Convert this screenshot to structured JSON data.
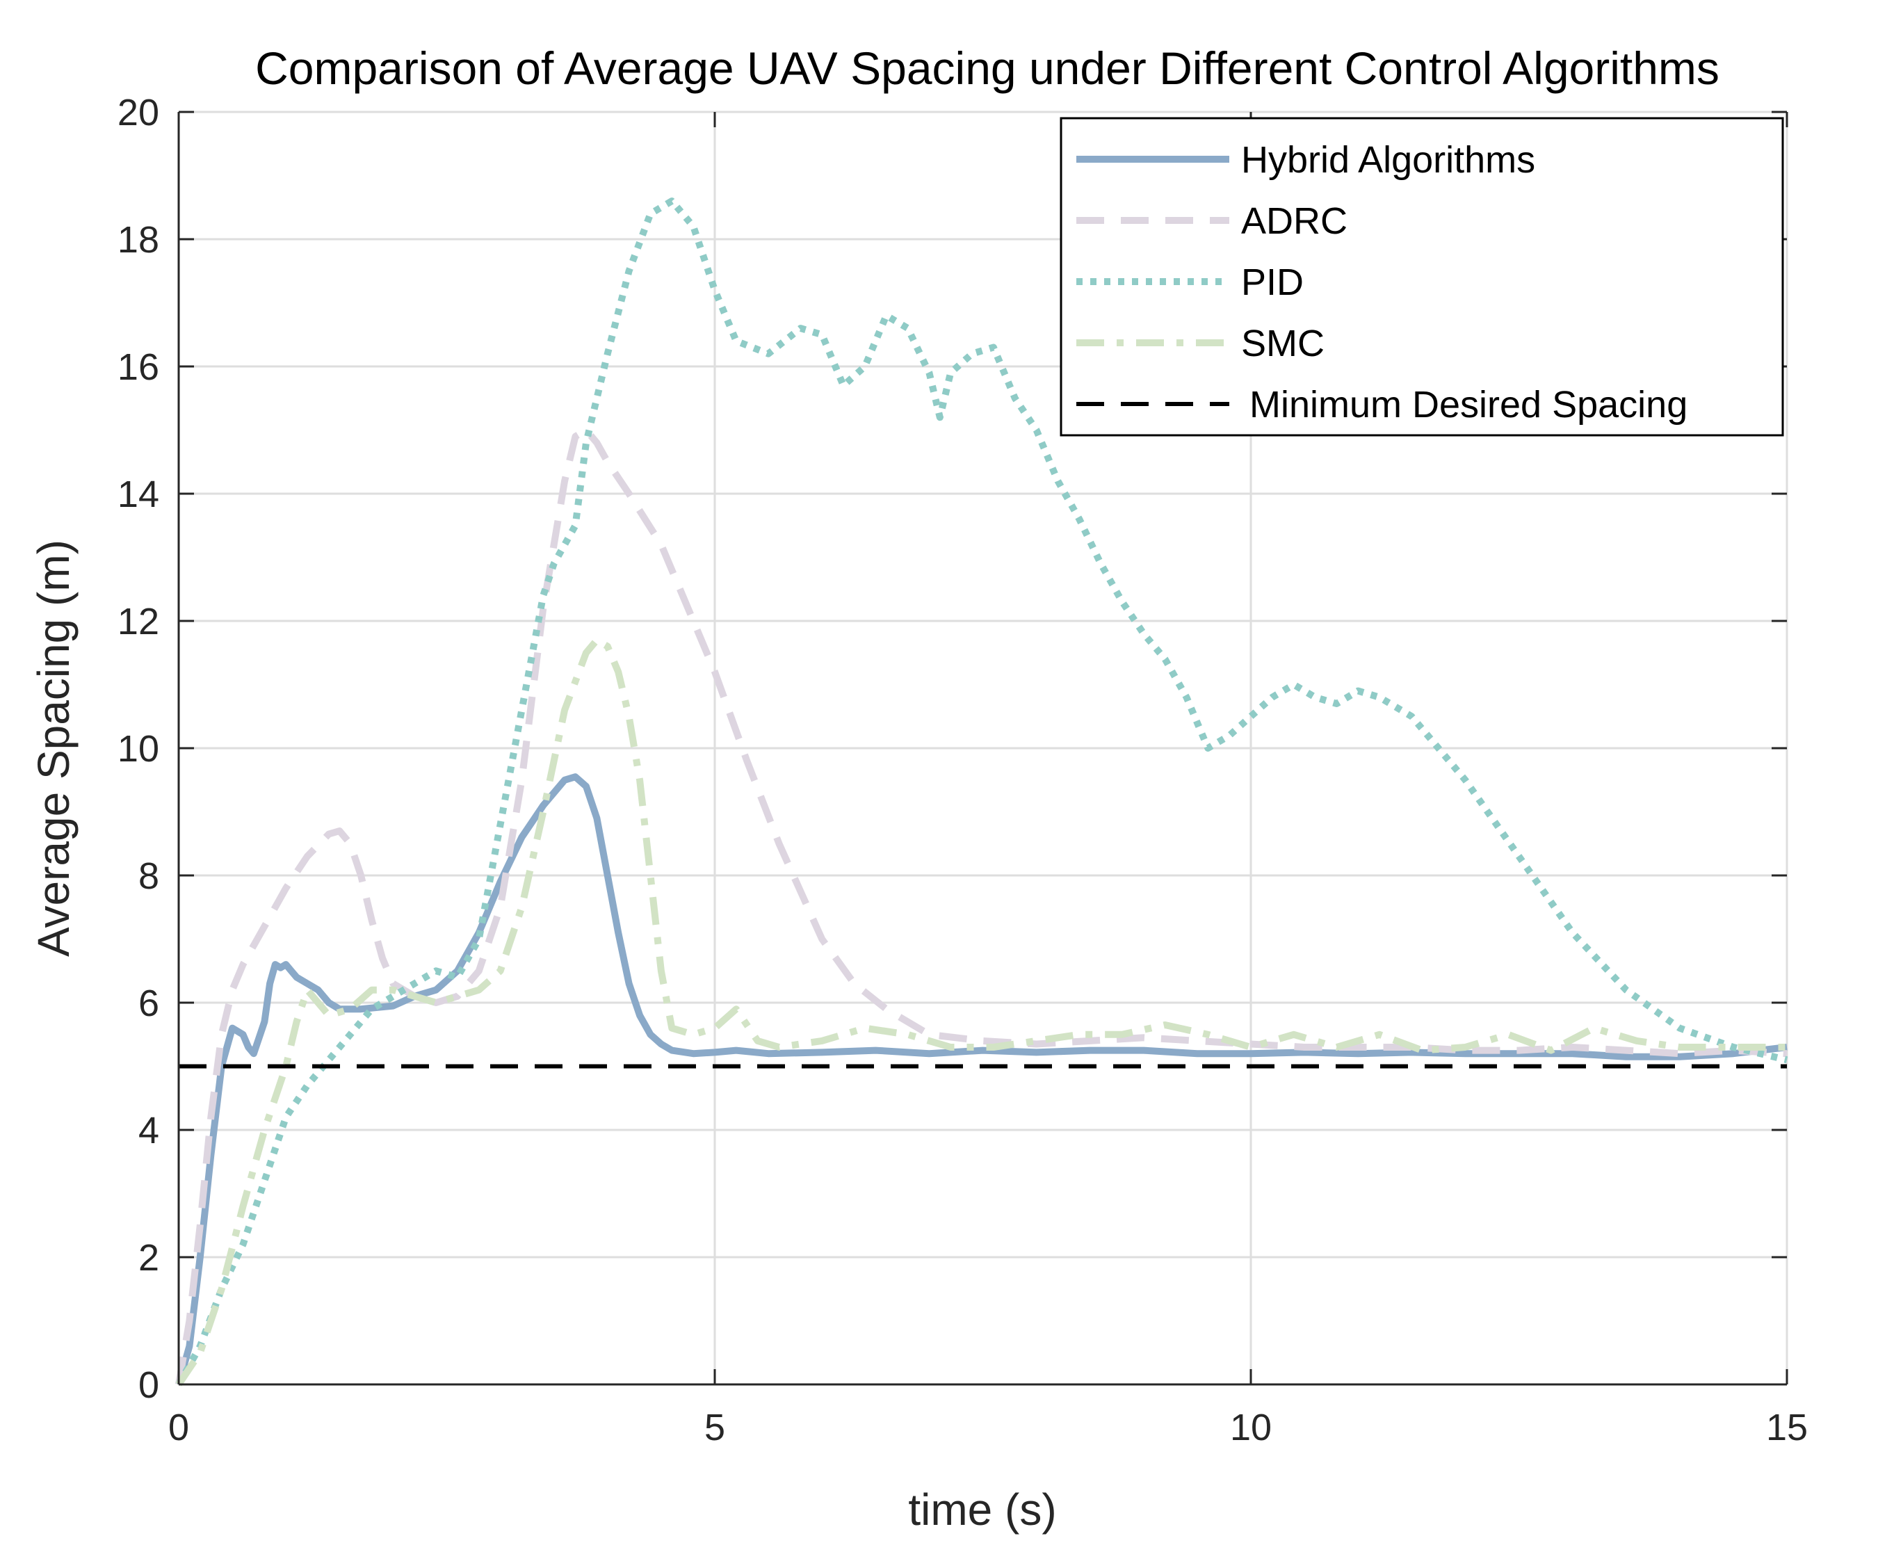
{
  "chart_data": {
    "type": "line",
    "title": "Comparison of Average UAV Spacing under Different Control Algorithms",
    "xlabel": "time (s)",
    "ylabel": "Average Spacing (m)",
    "xlim": [
      0,
      15
    ],
    "ylim": [
      0,
      20
    ],
    "xticks": [
      0,
      5,
      10,
      15
    ],
    "xtick_labels": [
      "0",
      "5",
      "10",
      "15"
    ],
    "yticks": [
      0,
      2,
      4,
      6,
      8,
      10,
      12,
      14,
      16,
      18,
      20
    ],
    "ytick_labels": [
      "0",
      "2",
      "4",
      "6",
      "8",
      "10",
      "12",
      "14",
      "16",
      "18",
      "20"
    ],
    "grid": true,
    "legend_position": "top-right",
    "series": [
      {
        "name": "Hybrid Algorithms",
        "color": "#8aa9c8",
        "style": "solid",
        "x": [
          0,
          0.1,
          0.2,
          0.3,
          0.4,
          0.5,
          0.6,
          0.65,
          0.7,
          0.8,
          0.85,
          0.9,
          0.95,
          1.0,
          1.05,
          1.1,
          1.2,
          1.3,
          1.4,
          1.5,
          1.7,
          2.0,
          2.2,
          2.4,
          2.6,
          2.8,
          3.0,
          3.2,
          3.4,
          3.6,
          3.7,
          3.8,
          3.9,
          4.0,
          4.1,
          4.2,
          4.3,
          4.4,
          4.5,
          4.6,
          4.8,
          5.0,
          5.2,
          5.5,
          6.0,
          6.5,
          7.0,
          7.5,
          8.0,
          8.5,
          9.0,
          9.5,
          10.0,
          10.5,
          11.0,
          11.5,
          12.0,
          12.5,
          13.0,
          13.5,
          14.0,
          14.5,
          15.0
        ],
        "y": [
          0,
          0.6,
          2.0,
          3.6,
          5.0,
          5.6,
          5.5,
          5.3,
          5.2,
          5.7,
          6.3,
          6.6,
          6.55,
          6.6,
          6.5,
          6.4,
          6.3,
          6.2,
          6.0,
          5.9,
          5.9,
          5.95,
          6.1,
          6.2,
          6.5,
          7.1,
          7.9,
          8.6,
          9.1,
          9.5,
          9.55,
          9.4,
          8.9,
          8.0,
          7.1,
          6.3,
          5.8,
          5.5,
          5.35,
          5.25,
          5.2,
          5.22,
          5.25,
          5.2,
          5.22,
          5.25,
          5.2,
          5.25,
          5.22,
          5.25,
          5.25,
          5.2,
          5.2,
          5.22,
          5.2,
          5.22,
          5.2,
          5.2,
          5.2,
          5.15,
          5.15,
          5.2,
          5.3
        ]
      },
      {
        "name": "ADRC",
        "color": "#ddd5e0",
        "style": "dashed",
        "x": [
          0,
          0.1,
          0.2,
          0.3,
          0.4,
          0.5,
          0.6,
          0.7,
          0.8,
          0.9,
          1.0,
          1.2,
          1.4,
          1.5,
          1.6,
          1.7,
          1.8,
          1.9,
          2.0,
          2.2,
          2.4,
          2.6,
          2.8,
          3.0,
          3.2,
          3.4,
          3.6,
          3.7,
          3.8,
          3.9,
          4.0,
          4.2,
          4.5,
          4.8,
          5.0,
          5.3,
          5.6,
          6.0,
          6.3,
          6.6,
          7.0,
          7.5,
          8.0,
          8.5,
          9.0,
          9.5,
          10.0,
          10.5,
          11.0,
          11.5,
          12.0,
          12.5,
          13.0,
          13.5,
          14.0,
          14.5,
          15.0
        ],
        "y": [
          0,
          1.0,
          2.5,
          4.2,
          5.5,
          6.2,
          6.6,
          6.9,
          7.2,
          7.5,
          7.8,
          8.3,
          8.65,
          8.7,
          8.5,
          8.0,
          7.3,
          6.7,
          6.3,
          6.1,
          6.0,
          6.1,
          6.5,
          7.5,
          9.5,
          12.2,
          14.2,
          14.9,
          15.0,
          14.8,
          14.5,
          14.0,
          13.2,
          12.0,
          11.2,
          9.8,
          8.5,
          7.0,
          6.3,
          5.9,
          5.5,
          5.4,
          5.35,
          5.4,
          5.45,
          5.4,
          5.35,
          5.3,
          5.3,
          5.3,
          5.25,
          5.25,
          5.3,
          5.25,
          5.2,
          5.25,
          5.2
        ]
      },
      {
        "name": "PID",
        "color": "#8fcbc6",
        "style": "dotted",
        "x": [
          0,
          0.2,
          0.4,
          0.6,
          0.8,
          1.0,
          1.2,
          1.4,
          1.6,
          1.8,
          2.0,
          2.2,
          2.4,
          2.6,
          2.8,
          3.0,
          3.2,
          3.4,
          3.5,
          3.6,
          3.7,
          3.8,
          4.0,
          4.2,
          4.4,
          4.6,
          4.8,
          5.0,
          5.2,
          5.5,
          5.8,
          6.0,
          6.2,
          6.4,
          6.6,
          6.8,
          7.0,
          7.1,
          7.2,
          7.4,
          7.6,
          7.8,
          8.0,
          8.2,
          8.4,
          8.6,
          8.8,
          9.0,
          9.2,
          9.4,
          9.6,
          9.8,
          10.0,
          10.2,
          10.4,
          10.6,
          10.8,
          11.0,
          11.2,
          11.5,
          12.0,
          12.5,
          13.0,
          13.5,
          14.0,
          14.5,
          15.0
        ],
        "y": [
          0,
          0.6,
          1.5,
          2.2,
          3.2,
          4.2,
          4.7,
          5.1,
          5.5,
          5.9,
          6.1,
          6.3,
          6.5,
          6.4,
          7.0,
          8.8,
          10.6,
          12.4,
          12.9,
          13.2,
          13.5,
          14.8,
          16.2,
          17.5,
          18.4,
          18.6,
          18.2,
          17.2,
          16.4,
          16.2,
          16.6,
          16.5,
          15.7,
          16.0,
          16.8,
          16.6,
          15.9,
          15.2,
          15.9,
          16.2,
          16.3,
          15.5,
          15.0,
          14.2,
          13.6,
          12.9,
          12.3,
          11.8,
          11.4,
          10.8,
          10.0,
          10.2,
          10.5,
          10.8,
          11.0,
          10.8,
          10.7,
          10.9,
          10.8,
          10.5,
          9.5,
          8.3,
          7.1,
          6.2,
          5.6,
          5.3,
          5.1
        ]
      },
      {
        "name": "SMC",
        "color": "#d2e3c5",
        "style": "dashdot",
        "x": [
          0,
          0.2,
          0.4,
          0.6,
          0.8,
          1.0,
          1.1,
          1.2,
          1.3,
          1.4,
          1.6,
          1.8,
          2.0,
          2.2,
          2.4,
          2.6,
          2.8,
          3.0,
          3.2,
          3.4,
          3.6,
          3.8,
          3.9,
          4.0,
          4.1,
          4.2,
          4.3,
          4.4,
          4.5,
          4.6,
          4.8,
          5.0,
          5.2,
          5.4,
          5.6,
          6.0,
          6.4,
          6.8,
          7.2,
          7.6,
          8.0,
          8.4,
          8.8,
          9.2,
          9.6,
          10.0,
          10.4,
          10.8,
          11.2,
          11.6,
          12.0,
          12.4,
          12.8,
          13.2,
          13.6,
          14.0,
          14.5,
          15.0
        ],
        "y": [
          0,
          0.5,
          1.5,
          2.8,
          4.0,
          5.0,
          5.7,
          6.2,
          6.0,
          5.8,
          5.9,
          6.2,
          6.2,
          6.1,
          6.0,
          6.1,
          6.2,
          6.5,
          7.5,
          9.0,
          10.6,
          11.5,
          11.7,
          11.6,
          11.2,
          10.5,
          9.5,
          8.0,
          6.5,
          5.6,
          5.5,
          5.6,
          5.9,
          5.4,
          5.3,
          5.4,
          5.6,
          5.5,
          5.3,
          5.3,
          5.4,
          5.5,
          5.5,
          5.65,
          5.5,
          5.3,
          5.5,
          5.3,
          5.5,
          5.25,
          5.3,
          5.5,
          5.25,
          5.6,
          5.4,
          5.3,
          5.3,
          5.3
        ]
      },
      {
        "name": "Minimum Desired Spacing",
        "color": "#000000",
        "style": "dashed",
        "x": [
          0,
          15
        ],
        "y": [
          5,
          5
        ]
      }
    ]
  }
}
